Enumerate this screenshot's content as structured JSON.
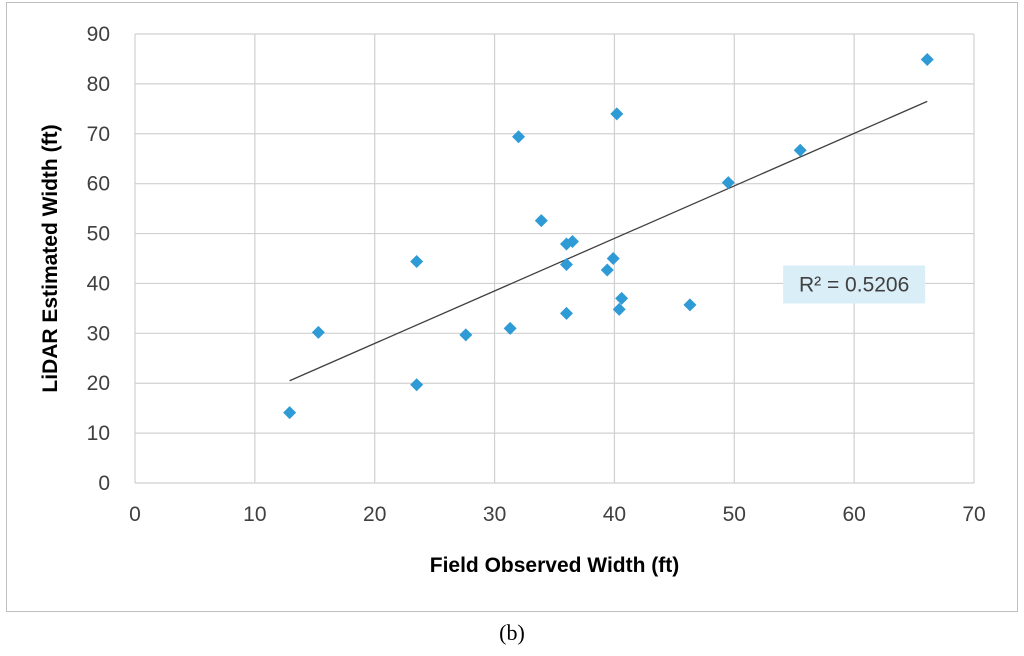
{
  "chart_data": {
    "type": "scatter",
    "title": "",
    "xlabel": "Field Observed Width (ft)",
    "ylabel": "LiDAR Estimated Width (ft)",
    "xlim": [
      0,
      70
    ],
    "ylim": [
      0,
      90
    ],
    "x_ticks": [
      "0",
      "10",
      "20",
      "30",
      "40",
      "50",
      "60",
      "70"
    ],
    "y_ticks": [
      "0",
      "10",
      "20",
      "30",
      "40",
      "50",
      "60",
      "70",
      "80",
      "90"
    ],
    "grid": true,
    "legend": "none",
    "point_color": "#2E9AD6",
    "marker": "diamond",
    "points": [
      {
        "x": 12.9,
        "y": 14.1
      },
      {
        "x": 15.3,
        "y": 30.2
      },
      {
        "x": 23.5,
        "y": 19.7
      },
      {
        "x": 23.5,
        "y": 44.4
      },
      {
        "x": 27.6,
        "y": 29.7
      },
      {
        "x": 31.3,
        "y": 31.0
      },
      {
        "x": 32.0,
        "y": 69.4
      },
      {
        "x": 33.9,
        "y": 52.6
      },
      {
        "x": 36.0,
        "y": 34.0
      },
      {
        "x": 36.0,
        "y": 43.8
      },
      {
        "x": 36.0,
        "y": 47.9
      },
      {
        "x": 36.5,
        "y": 48.4
      },
      {
        "x": 39.4,
        "y": 42.7
      },
      {
        "x": 39.9,
        "y": 45.0
      },
      {
        "x": 40.2,
        "y": 74.0
      },
      {
        "x": 40.4,
        "y": 34.8
      },
      {
        "x": 40.6,
        "y": 37.0
      },
      {
        "x": 46.3,
        "y": 35.7
      },
      {
        "x": 49.5,
        "y": 60.2
      },
      {
        "x": 55.5,
        "y": 66.7
      },
      {
        "x": 66.1,
        "y": 84.9
      }
    ],
    "trendline": {
      "x": [
        12.9,
        66.1
      ],
      "y": [
        20.5,
        76.5
      ],
      "color": "#404040"
    },
    "annotation": {
      "text": "R² = 0.5206",
      "x": 60,
      "y": 40,
      "background": "#DAEEF8"
    }
  },
  "caption": "(b)"
}
